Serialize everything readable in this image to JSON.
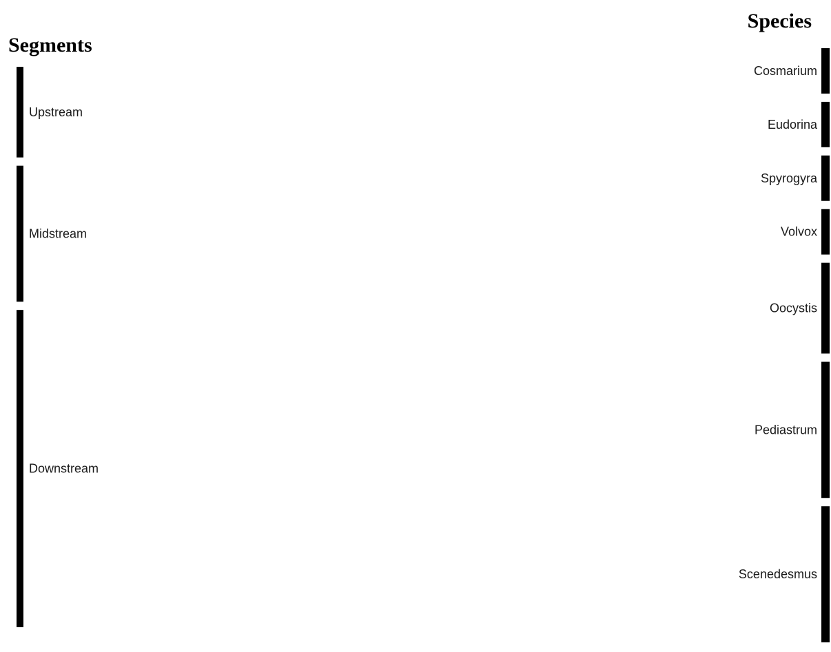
{
  "headers": {
    "left": "Segments",
    "right": "Species"
  },
  "colors": {
    "Upstream": "#2ca02c",
    "Midstream": "#ff7f0e",
    "Downstream": "#1f77b4"
  },
  "chart_data": {
    "type": "sankey",
    "sources": [
      "Upstream",
      "Midstream",
      "Downstream"
    ],
    "targets": [
      "Cosmarium",
      "Eudorina",
      "Spyrogyra",
      "Volvox",
      "Oocystis",
      "Pediastrum",
      "Scenedesmus"
    ],
    "links": [
      {
        "source": "Upstream",
        "target": "Scenedesmus",
        "value": 1
      },
      {
        "source": "Upstream",
        "target": "Pediastrum",
        "value": 1
      },
      {
        "source": "Midstream",
        "target": "Oocystis",
        "value": 1
      },
      {
        "source": "Midstream",
        "target": "Pediastrum",
        "value": 1
      },
      {
        "source": "Midstream",
        "target": "Scenedesmus",
        "value": 1
      },
      {
        "source": "Downstream",
        "target": "Cosmarium",
        "value": 1
      },
      {
        "source": "Downstream",
        "target": "Eudorina",
        "value": 1
      },
      {
        "source": "Downstream",
        "target": "Spyrogyra",
        "value": 1
      },
      {
        "source": "Downstream",
        "target": "Volvox",
        "value": 1
      },
      {
        "source": "Downstream",
        "target": "Oocystis",
        "value": 1
      },
      {
        "source": "Downstream",
        "target": "Pediastrum",
        "value": 1
      },
      {
        "source": "Downstream",
        "target": "Scenedesmus",
        "value": 1
      }
    ]
  }
}
